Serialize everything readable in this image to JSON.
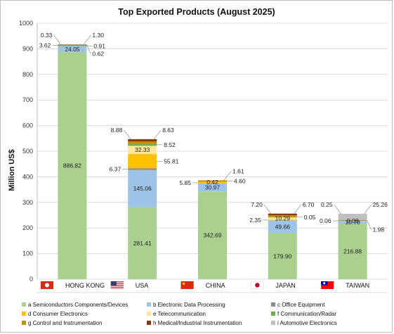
{
  "chart_data": {
    "type": "bar",
    "stacked": true,
    "title": "Top Exported Products (August 2025)",
    "ylabel": "Million US$",
    "xlabel": "",
    "ylim": [
      0,
      1000
    ],
    "yticks": [
      0,
      100,
      200,
      300,
      400,
      500,
      600,
      700,
      800,
      900,
      1000
    ],
    "grid": true,
    "legend_position": "bottom",
    "categories": [
      "HONG KONG",
      "USA",
      "CHINA",
      "JAPAN",
      "TAIWAN"
    ],
    "category_flags": [
      "hong-kong-flag-icon",
      "usa-flag-icon",
      "china-flag-icon",
      "japan-flag-icon",
      "taiwan-flag-icon"
    ],
    "series": [
      {
        "name": "a Semiconductors Components/Devices",
        "color": "#a9d08e",
        "values": [
          886.82,
          281.41,
          342.69,
          179.9,
          216.88
        ]
      },
      {
        "name": "b Electronic Data Processing",
        "color": "#9dc3e6",
        "values": [
          24.05,
          145.06,
          30.97,
          49.66,
          10.78
        ]
      },
      {
        "name": "c Office Equipment",
        "color": "#8c8c8c",
        "values": [
          null,
          6.37,
          null,
          null,
          0.06
        ]
      },
      {
        "name": "d Consumer Electronics",
        "color": "#ffc000",
        "values": [
          null,
          55.81,
          5.85,
          2.35,
          null
        ]
      },
      {
        "name": "e Telecommunication",
        "color": "#ffe699",
        "values": [
          0.91,
          32.33,
          0.42,
          10.29,
          0.08
        ]
      },
      {
        "name": "f Communication/Radar",
        "color": "#70ad47",
        "values": [
          0.33,
          8.52,
          1.61,
          0.05,
          null
        ]
      },
      {
        "name": "g Control and Instrumentation",
        "color": "#bf8f00",
        "values": [
          3.62,
          8.88,
          4.6,
          7.2,
          1.98
        ]
      },
      {
        "name": "h Medical/Industrial Instrumentation",
        "color": "#843c0c",
        "values": [
          0.62,
          8.63,
          null,
          6.7,
          0.25
        ]
      },
      {
        "name": "i Automotive Electronics",
        "color": "#bfbfbf",
        "values": [
          1.3,
          null,
          null,
          null,
          25.26
        ]
      }
    ],
    "labels": [
      [
        {
          "text": "886.82",
          "series": 0,
          "pos": "center"
        },
        {
          "text": "24.05",
          "series": 1,
          "pos": "center"
        },
        {
          "text": "0.33",
          "series": 5,
          "pos": "top-left"
        },
        {
          "text": "3.62",
          "series": 6,
          "pos": "left"
        },
        {
          "text": "1.30",
          "series": 8,
          "pos": "top-right"
        },
        {
          "text": "0.91",
          "series": 4,
          "pos": "right"
        },
        {
          "text": "0.62",
          "series": 7,
          "pos": "lower-right"
        }
      ],
      [
        {
          "text": "281.41",
          "series": 0,
          "pos": "center"
        },
        {
          "text": "145.06",
          "series": 1,
          "pos": "center"
        },
        {
          "text": "6.37",
          "series": 2,
          "pos": "left"
        },
        {
          "text": "55.81",
          "series": 3,
          "pos": "right"
        },
        {
          "text": "32.33",
          "series": 4,
          "pos": "center"
        },
        {
          "text": "8.52",
          "series": 5,
          "pos": "right"
        },
        {
          "text": "8.88",
          "series": 6,
          "pos": "top-left"
        },
        {
          "text": "8.63",
          "series": 7,
          "pos": "top-right"
        }
      ],
      [
        {
          "text": "342.69",
          "series": 0,
          "pos": "center"
        },
        {
          "text": "30.97",
          "series": 1,
          "pos": "center"
        },
        {
          "text": "5.85",
          "series": 3,
          "pos": "left"
        },
        {
          "text": "0.42",
          "series": 4,
          "pos": "center"
        },
        {
          "text": "1.61",
          "series": 5,
          "pos": "top-right"
        },
        {
          "text": "4.60",
          "series": 6,
          "pos": "right"
        }
      ],
      [
        {
          "text": "179.90",
          "series": 0,
          "pos": "center"
        },
        {
          "text": "49.66",
          "series": 1,
          "pos": "center"
        },
        {
          "text": "2.35",
          "series": 3,
          "pos": "left"
        },
        {
          "text": "10.29",
          "series": 4,
          "pos": "center"
        },
        {
          "text": "0.05",
          "series": 5,
          "pos": "right"
        },
        {
          "text": "7.20",
          "series": 6,
          "pos": "top-left"
        },
        {
          "text": "6.70",
          "series": 7,
          "pos": "top-right"
        }
      ],
      [
        {
          "text": "216.88",
          "series": 0,
          "pos": "center"
        },
        {
          "text": "10.78",
          "series": 1,
          "pos": "center"
        },
        {
          "text": "0.06",
          "series": 2,
          "pos": "left"
        },
        {
          "text": "0.08",
          "series": 4,
          "pos": "center"
        },
        {
          "text": "1.98",
          "series": 6,
          "pos": "lower-right"
        },
        {
          "text": "0.25",
          "series": 7,
          "pos": "top-left"
        },
        {
          "text": "25.26",
          "series": 8,
          "pos": "top-right"
        }
      ]
    ]
  }
}
